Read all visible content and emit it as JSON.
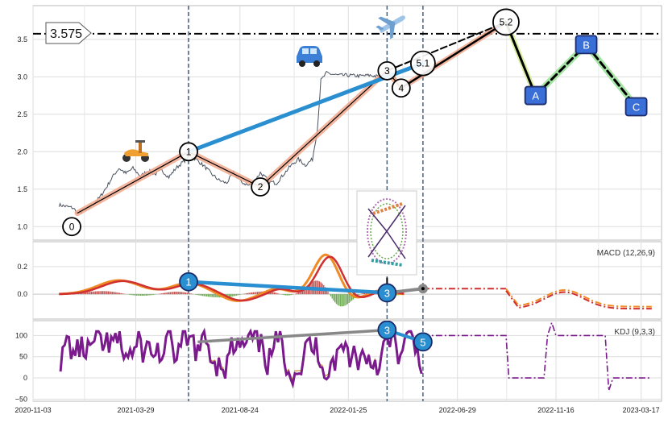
{
  "chart_data": [
    {
      "type": "line",
      "panel": "price",
      "xlim": [
        "2020-11-03",
        "2023-04-15"
      ],
      "ylim": [
        0.82,
        3.95
      ],
      "y_ticks": [
        1.0,
        1.5,
        2.0,
        2.5,
        3.0,
        3.5
      ],
      "y_tick_labels": [
        "1.0",
        "1.5",
        "2.0",
        "2.5",
        "3.0",
        "3.5"
      ],
      "grid": true,
      "reference_line": {
        "value": 3.575,
        "label": "3.575",
        "style": "dash-dot",
        "color": "#000000"
      },
      "vertical_markers": [
        "2021-06-12",
        "2022-03-21",
        "2022-05-11"
      ],
      "price_series": [
        {
          "date": "2020-12-10",
          "value": 1.29
        },
        {
          "date": "2020-12-20",
          "value": 1.27
        },
        {
          "date": "2020-12-30",
          "value": 1.25
        },
        {
          "date": "2021-01-05",
          "value": 1.18
        },
        {
          "date": "2021-01-12",
          "value": 1.2
        },
        {
          "date": "2021-01-22",
          "value": 1.25
        },
        {
          "date": "2021-02-05",
          "value": 1.38
        },
        {
          "date": "2021-02-15",
          "value": 1.52
        },
        {
          "date": "2021-02-25",
          "value": 1.68
        },
        {
          "date": "2021-03-05",
          "value": 1.78
        },
        {
          "date": "2021-03-15",
          "value": 1.71
        },
        {
          "date": "2021-03-25",
          "value": 1.78
        },
        {
          "date": "2021-04-05",
          "value": 1.67
        },
        {
          "date": "2021-04-15",
          "value": 1.75
        },
        {
          "date": "2021-04-25",
          "value": 1.7
        },
        {
          "date": "2021-05-05",
          "value": 1.75
        },
        {
          "date": "2021-05-15",
          "value": 1.66
        },
        {
          "date": "2021-05-25",
          "value": 1.78
        },
        {
          "date": "2021-06-05",
          "value": 1.87
        },
        {
          "date": "2021-06-15",
          "value": 1.95
        },
        {
          "date": "2021-06-25",
          "value": 1.88
        },
        {
          "date": "2021-07-05",
          "value": 1.8
        },
        {
          "date": "2021-07-15",
          "value": 1.7
        },
        {
          "date": "2021-07-25",
          "value": 1.62
        },
        {
          "date": "2021-08-05",
          "value": 1.58
        },
        {
          "date": "2021-08-15",
          "value": 1.72
        },
        {
          "date": "2021-08-25",
          "value": 1.6
        },
        {
          "date": "2021-09-05",
          "value": 1.55
        },
        {
          "date": "2021-09-12",
          "value": 1.58
        },
        {
          "date": "2021-09-22",
          "value": 1.72
        },
        {
          "date": "2021-10-05",
          "value": 1.6
        },
        {
          "date": "2021-10-15",
          "value": 1.58
        },
        {
          "date": "2021-10-25",
          "value": 1.7
        },
        {
          "date": "2021-11-05",
          "value": 1.82
        },
        {
          "date": "2021-11-15",
          "value": 1.9
        },
        {
          "date": "2021-11-25",
          "value": 1.82
        },
        {
          "date": "2021-12-05",
          "value": 1.9
        },
        {
          "date": "2021-12-12",
          "value": 2.3
        },
        {
          "date": "2021-12-17",
          "value": 2.95
        },
        {
          "date": "2021-12-25",
          "value": 3.05
        },
        {
          "date": "2022-01-10",
          "value": 3.02
        },
        {
          "date": "2022-01-25",
          "value": 3.02
        },
        {
          "date": "2022-02-10",
          "value": 3.01
        },
        {
          "date": "2022-02-25",
          "value": 3.02
        },
        {
          "date": "2022-03-10",
          "value": 3.0
        },
        {
          "date": "2022-03-21",
          "value": 3.0
        },
        {
          "date": "2022-04-01",
          "value": 2.98
        },
        {
          "date": "2022-04-08",
          "value": 2.9
        }
      ],
      "waves": [
        {
          "label": "0",
          "date": "2020-12-28",
          "value": 1.0
        },
        {
          "label": "1",
          "date": "2021-06-12",
          "value": 2.0
        },
        {
          "label": "2",
          "date": "2021-09-22",
          "value": 1.53
        },
        {
          "label": "3",
          "date": "2022-03-21",
          "value": 3.08
        },
        {
          "label": "4",
          "date": "2022-04-10",
          "value": 2.85
        },
        {
          "label": "5.1",
          "date": "2022-05-11",
          "value": 3.18
        },
        {
          "label": "5.2",
          "date": "2022-09-06",
          "value": 3.73
        },
        {
          "label": "A",
          "date": "2022-10-18",
          "value": 2.75
        },
        {
          "label": "B",
          "date": "2022-12-29",
          "value": 3.43
        },
        {
          "label": "C",
          "date": "2023-03-10",
          "value": 2.6
        }
      ]
    },
    {
      "type": "line",
      "panel": "macd",
      "label": "MACD (12,26,9)",
      "ylim": [
        -0.18,
        0.38
      ],
      "y_ticks": [
        0.0,
        0.2
      ],
      "y_tick_labels": [
        "0.0",
        "0.2"
      ],
      "grid": true,
      "markers": [
        {
          "label": "1",
          "date": "2021-06-12",
          "value": 0.09
        },
        {
          "label": "3",
          "date": "2022-03-21",
          "value": 0.01
        }
      ]
    },
    {
      "type": "line",
      "panel": "kdj",
      "label": "KDJ (9,3,3)",
      "ylim": [
        -55,
        135
      ],
      "y_ticks": [
        -50,
        0,
        50,
        100
      ],
      "y_tick_labels": [
        "−50",
        "0",
        "50",
        "100"
      ],
      "grid": true,
      "x_tick_labels": [
        "2020-11-03",
        "2021-03-29",
        "2021-08-24",
        "2022-01-25",
        "2022-06-29",
        "2022-11-16",
        "2023-03-17"
      ],
      "markers": [
        {
          "label": "3",
          "date": "2022-03-21",
          "value": 113
        },
        {
          "label": "5",
          "date": "2022-05-11",
          "value": 85
        }
      ]
    }
  ]
}
